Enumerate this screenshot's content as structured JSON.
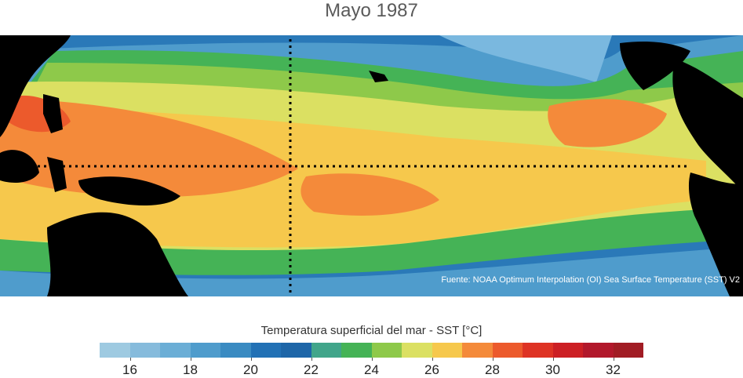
{
  "title": "Mayo 1987",
  "source": "Fuente: NOAA Optimum Interpolation (OI) Sea Surface Temperature (SST) V2",
  "colorbar": {
    "label": "Temperatura superficial del mar - SST  [°C]",
    "min": 15,
    "max": 33,
    "step": 1,
    "tick_labels": [
      "16",
      "18",
      "20",
      "22",
      "24",
      "26",
      "28",
      "30",
      "32"
    ],
    "colors": [
      "#9ecae1",
      "#86bbdc",
      "#6baed6",
      "#4f9ccc",
      "#3a8bc2",
      "#2271b5",
      "#1e66a8",
      "#41a58a",
      "#45b356",
      "#8ec94a",
      "#dbe062",
      "#f6c84c",
      "#f48a3a",
      "#ec5a2c",
      "#de3324",
      "#cc1f24",
      "#b2182b",
      "#a11c24"
    ]
  },
  "map": {
    "land_color": "#000000",
    "grid_style": "dotted",
    "region": "Tropical Pacific"
  }
}
